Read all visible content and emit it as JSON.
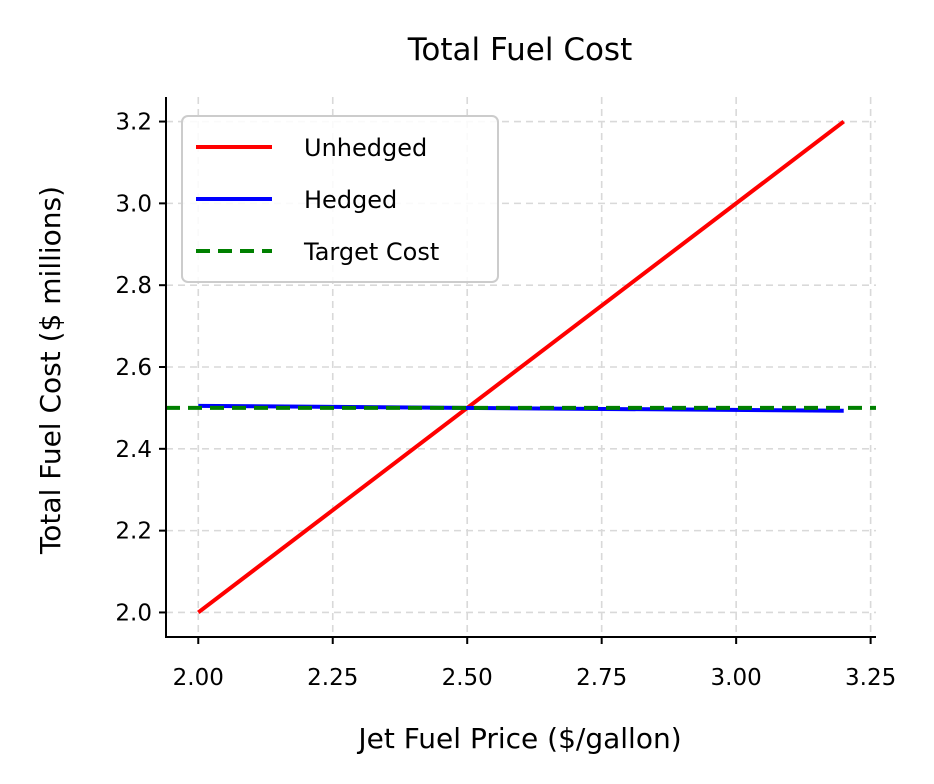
{
  "chart_data": {
    "type": "line",
    "title": "Total Fuel Cost",
    "xlabel": "Jet Fuel Price ($/gallon)",
    "ylabel": "Total Fuel Cost ($ millions)",
    "xlim": [
      1.94,
      3.26
    ],
    "ylim": [
      1.94,
      3.26
    ],
    "xticks": [
      2.0,
      2.25,
      2.5,
      2.75,
      3.0,
      3.25
    ],
    "xtick_labels": [
      "2.00",
      "2.25",
      "2.50",
      "2.75",
      "3.00",
      "3.25"
    ],
    "yticks": [
      2.0,
      2.2,
      2.4,
      2.6,
      2.8,
      3.0,
      3.2
    ],
    "ytick_labels": [
      "2.0",
      "2.2",
      "2.4",
      "2.6",
      "2.8",
      "3.0",
      "3.2"
    ],
    "grid": true,
    "legend_position": "top-left",
    "series": [
      {
        "name": "Unhedged",
        "color": "#ff0000",
        "style": "solid",
        "x": [
          2.0,
          3.2
        ],
        "y": [
          2.0,
          3.2
        ]
      },
      {
        "name": "Hedged",
        "color": "#0000ff",
        "style": "solid",
        "x": [
          2.0,
          3.2
        ],
        "y": [
          2.505,
          2.493
        ]
      },
      {
        "name": "Target Cost",
        "color": "#008000",
        "style": "dashed",
        "type": "hline",
        "y": 2.5
      }
    ]
  }
}
